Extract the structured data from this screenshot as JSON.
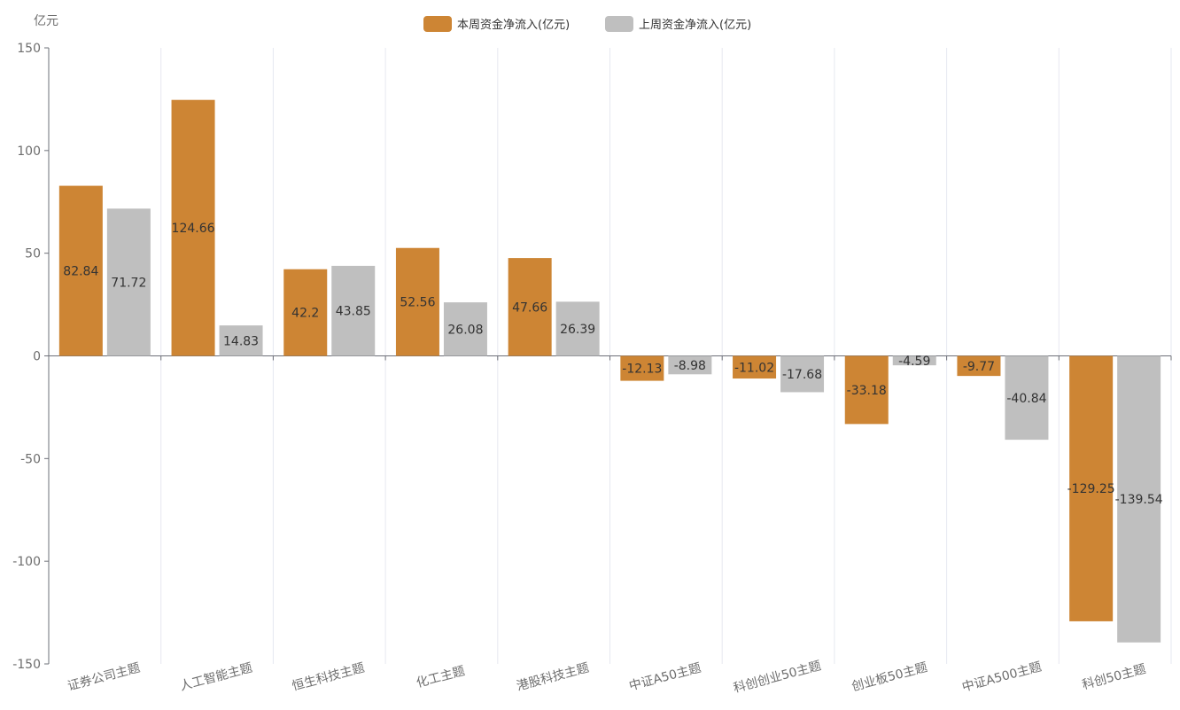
{
  "chart_data": {
    "type": "bar",
    "y_unit": "亿元",
    "categories": [
      "证券公司主题",
      "人工智能主题",
      "恒生科技主题",
      "化工主题",
      "港股科技主题",
      "中证A50主题",
      "科创创业50主题",
      "创业板50主题",
      "中证A500主题",
      "科创50主题"
    ],
    "series": [
      {
        "name": "本周资金净流入(亿元)",
        "color": "#CD8534",
        "values": [
          82.84,
          124.66,
          42.2,
          52.56,
          47.66,
          -12.13,
          -11.02,
          -33.18,
          -9.77,
          -129.25
        ]
      },
      {
        "name": "上周资金净流入(亿元)",
        "color": "#BFBFBF",
        "values": [
          71.72,
          14.83,
          43.85,
          26.08,
          26.39,
          -8.98,
          -17.68,
          -4.59,
          -40.84,
          -139.54
        ]
      }
    ],
    "data_labels": [
      [
        "82.84",
        "124.66",
        "42.2",
        "52.56",
        "47.66",
        "-12.13",
        "-11.02",
        "-33.18",
        "-9.77",
        "-129.25"
      ],
      [
        "71.72",
        "14.83",
        "43.85",
        "26.08",
        "26.39",
        "-8.98",
        "-17.68",
        "-4.59",
        "-40.84",
        "-139.54"
      ]
    ],
    "ylim": [
      -150,
      150
    ],
    "y_ticks": [
      150,
      100,
      50,
      0,
      -50,
      -100,
      -150
    ],
    "y_tick_labels": [
      "150",
      "100",
      "50",
      "0",
      "-50",
      "-100",
      "-150"
    ],
    "grid": "vertical category separators",
    "legend_position": "top-center"
  }
}
